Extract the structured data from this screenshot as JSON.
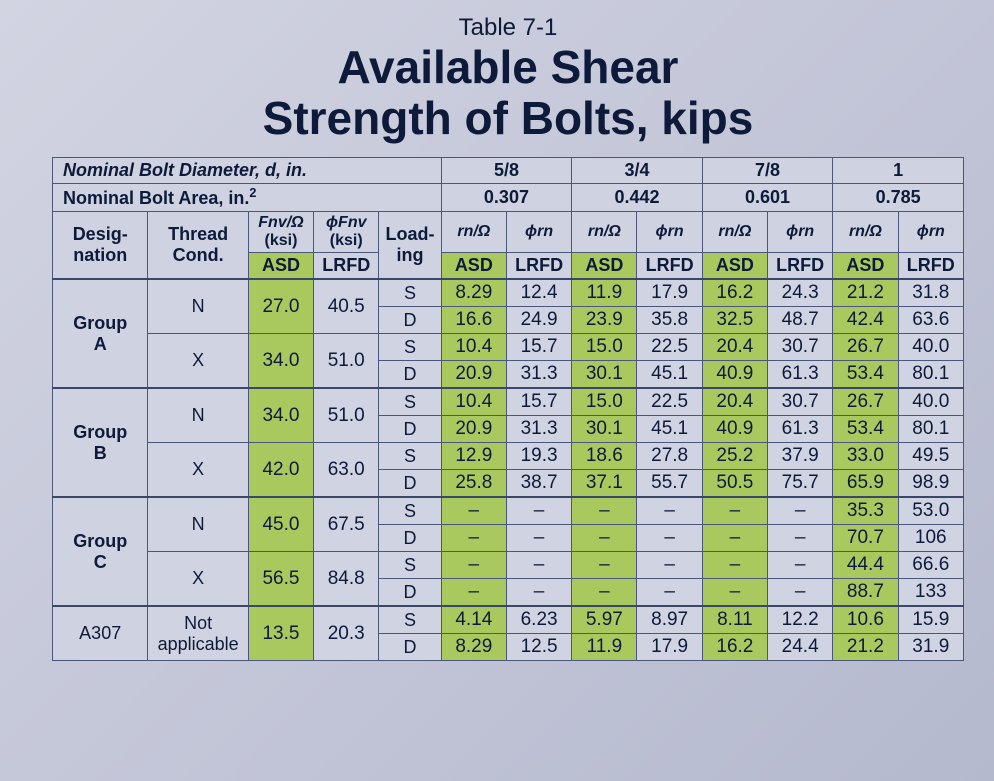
{
  "title_small": "Table 7-1",
  "title_line1": "Available Shear",
  "title_line2": "Strength of Bolts, kips",
  "hdr_diameter": "Nominal Bolt Diameter, d, in.",
  "hdr_area": "Nominal Bolt Area, in.",
  "hdr_area_sup": "2",
  "diam": [
    "5/8",
    "3/4",
    "7/8",
    "1"
  ],
  "area": [
    "0.307",
    "0.442",
    "0.601",
    "0.785"
  ],
  "col_desig": "Desig-\nnation",
  "col_thread": "Thread\nCond.",
  "fnv_asd": "Fnv/Ω",
  "fnv_lrfd": "ϕFnv",
  "ksi": "(ksi)",
  "col_loading": "Load-\ning",
  "rn_asd": "rn/Ω",
  "rn_lrfd": "ϕrn",
  "asd": "ASD",
  "lrfd": "LRFD",
  "S": "S",
  "D": "D",
  "dash": "–",
  "rows": [
    {
      "group": "Group\nA",
      "thread": "N",
      "fnv": "27.0",
      "phifnv": "40.5",
      "S": [
        "8.29",
        "12.4",
        "11.9",
        "17.9",
        "16.2",
        "24.3",
        "21.2",
        "31.8"
      ],
      "D": [
        "16.6",
        "24.9",
        "23.9",
        "35.8",
        "32.5",
        "48.7",
        "42.4",
        "63.6"
      ]
    },
    {
      "thread": "X",
      "fnv": "34.0",
      "phifnv": "51.0",
      "S": [
        "10.4",
        "15.7",
        "15.0",
        "22.5",
        "20.4",
        "30.7",
        "26.7",
        "40.0"
      ],
      "D": [
        "20.9",
        "31.3",
        "30.1",
        "45.1",
        "40.9",
        "61.3",
        "53.4",
        "80.1"
      ]
    },
    {
      "group": "Group\nB",
      "thread": "N",
      "fnv": "34.0",
      "phifnv": "51.0",
      "S": [
        "10.4",
        "15.7",
        "15.0",
        "22.5",
        "20.4",
        "30.7",
        "26.7",
        "40.0"
      ],
      "D": [
        "20.9",
        "31.3",
        "30.1",
        "45.1",
        "40.9",
        "61.3",
        "53.4",
        "80.1"
      ]
    },
    {
      "thread": "X",
      "fnv": "42.0",
      "phifnv": "63.0",
      "S": [
        "12.9",
        "19.3",
        "18.6",
        "27.8",
        "25.2",
        "37.9",
        "33.0",
        "49.5"
      ],
      "D": [
        "25.8",
        "38.7",
        "37.1",
        "55.7",
        "50.5",
        "75.7",
        "65.9",
        "98.9"
      ]
    },
    {
      "group": "Group\nC",
      "thread": "N",
      "fnv": "45.0",
      "phifnv": "67.5",
      "S": [
        "–",
        "–",
        "–",
        "–",
        "–",
        "–",
        "35.3",
        "53.0"
      ],
      "D": [
        "–",
        "–",
        "–",
        "–",
        "–",
        "–",
        "70.7",
        "106"
      ]
    },
    {
      "thread": "X",
      "fnv": "56.5",
      "phifnv": "84.8",
      "S": [
        "–",
        "–",
        "–",
        "–",
        "–",
        "–",
        "44.4",
        "66.6"
      ],
      "D": [
        "–",
        "–",
        "–",
        "–",
        "–",
        "–",
        "88.7",
        "133"
      ]
    },
    {
      "group": "A307",
      "thread": "Not\napplicable",
      "fnv": "13.5",
      "phifnv": "20.3",
      "S": [
        "4.14",
        "6.23",
        "5.97",
        "8.97",
        "8.11",
        "12.2",
        "10.6",
        "15.9"
      ],
      "D": [
        "8.29",
        "12.5",
        "11.9",
        "17.9",
        "16.2",
        "24.4",
        "21.2",
        "31.9"
      ]
    }
  ]
}
